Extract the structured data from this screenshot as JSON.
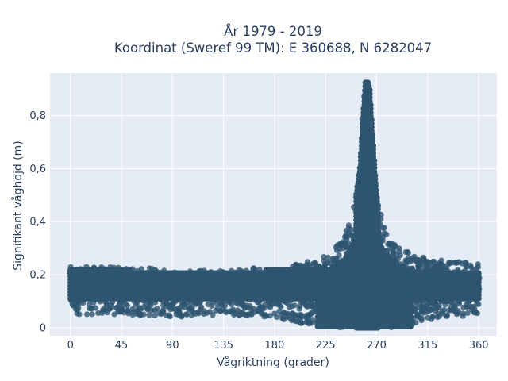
{
  "chart_data": {
    "type": "scatter",
    "title_line1": "År 1979 - 2019",
    "title_line2": "Koordinat (Sweref 99 TM): E 360688, N 6282047",
    "xlabel": "Vågriktning (grader)",
    "ylabel": "Signifikant våghöjd (m)",
    "xlim": [
      -18,
      376
    ],
    "ylim": [
      -0.03,
      0.96
    ],
    "x_ticks": [
      0,
      45,
      90,
      135,
      180,
      225,
      270,
      315,
      360
    ],
    "x_tick_labels": [
      "0",
      "45",
      "90",
      "135",
      "180",
      "225",
      "270",
      "315",
      "360"
    ],
    "y_ticks": [
      0,
      0.2,
      0.4,
      0.6,
      0.8
    ],
    "y_tick_labels": [
      "0",
      "0,2",
      "0,4",
      "0,6",
      "0,8"
    ],
    "grid": true,
    "legend": "none",
    "colors": {
      "marker": "#2e5570",
      "plot_background": "#e5ecf6",
      "grid": "#ffffff",
      "text": "#2a3f5f"
    },
    "density_envelope": {
      "direction_deg": [
        0,
        45,
        90,
        135,
        180,
        200,
        225,
        240,
        250,
        255,
        258,
        260,
        262,
        264,
        267,
        270,
        275,
        285,
        300,
        315,
        340,
        360
      ],
      "wave_height_min_m": [
        0.05,
        0.05,
        0.04,
        0.05,
        0.04,
        0.02,
        0.0,
        0.0,
        0.0,
        0.0,
        0.0,
        0.0,
        0.0,
        0.0,
        0.0,
        0.0,
        0.0,
        0.0,
        0.01,
        0.03,
        0.04,
        0.05
      ],
      "wave_height_max_m": [
        0.23,
        0.23,
        0.22,
        0.22,
        0.23,
        0.24,
        0.27,
        0.33,
        0.45,
        0.6,
        0.8,
        0.93,
        0.94,
        0.9,
        0.7,
        0.5,
        0.4,
        0.32,
        0.28,
        0.26,
        0.25,
        0.24
      ],
      "wave_height_core_m": [
        0.17,
        0.17,
        0.16,
        0.16,
        0.17,
        0.17,
        0.17,
        0.2,
        0.28,
        0.45,
        0.6,
        0.7,
        0.65,
        0.55,
        0.45,
        0.35,
        0.25,
        0.2,
        0.17,
        0.16,
        0.16,
        0.16
      ]
    }
  }
}
